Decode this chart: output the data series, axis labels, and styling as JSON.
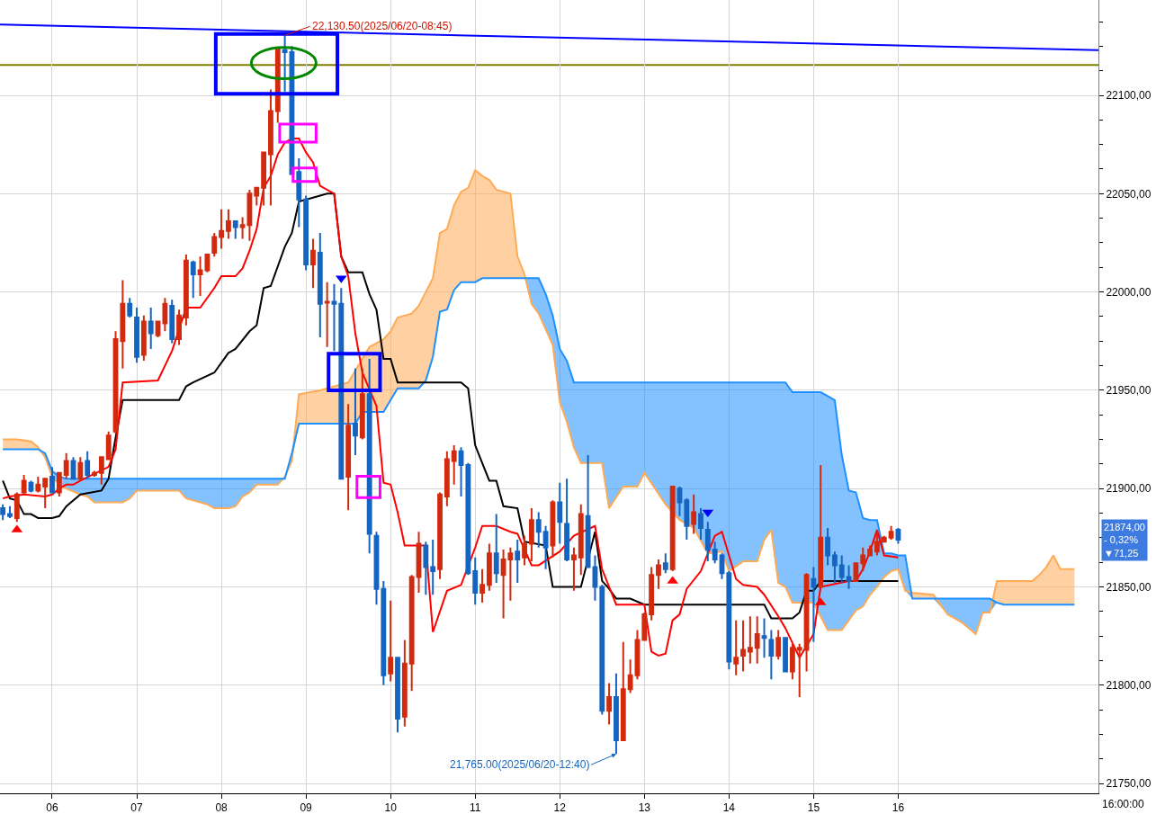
{
  "chart_data": {
    "type": "candlestick",
    "x": [
      "2025-06-20T05:25",
      "2025-06-20T05:30",
      "2025-06-20T05:35",
      "2025-06-20T05:40",
      "2025-06-20T05:45",
      "2025-06-20T05:50",
      "2025-06-20T05:55",
      "2025-06-20T06:00",
      "2025-06-20T06:05",
      "2025-06-20T06:10",
      "2025-06-20T06:15",
      "2025-06-20T06:20",
      "2025-06-20T06:25",
      "2025-06-20T06:30",
      "2025-06-20T06:35",
      "2025-06-20T06:40",
      "2025-06-20T06:45",
      "2025-06-20T06:50",
      "2025-06-20T06:55",
      "2025-06-20T07:00",
      "2025-06-20T07:05",
      "2025-06-20T07:10",
      "2025-06-20T07:15",
      "2025-06-20T07:20",
      "2025-06-20T07:25",
      "2025-06-20T07:30",
      "2025-06-20T07:35",
      "2025-06-20T07:40",
      "2025-06-20T07:45",
      "2025-06-20T07:50",
      "2025-06-20T07:55",
      "2025-06-20T08:00",
      "2025-06-20T08:05",
      "2025-06-20T08:10",
      "2025-06-20T08:15",
      "2025-06-20T08:20",
      "2025-06-20T08:25",
      "2025-06-20T08:30",
      "2025-06-20T08:35",
      "2025-06-20T08:40",
      "2025-06-20T08:45",
      "2025-06-20T08:50",
      "2025-06-20T08:55",
      "2025-06-20T09:00",
      "2025-06-20T09:05",
      "2025-06-20T09:10",
      "2025-06-20T09:15",
      "2025-06-20T09:20",
      "2025-06-20T09:25",
      "2025-06-20T09:30",
      "2025-06-20T09:35",
      "2025-06-20T09:40",
      "2025-06-20T09:45",
      "2025-06-20T09:50",
      "2025-06-20T09:55",
      "2025-06-20T10:00",
      "2025-06-20T10:05",
      "2025-06-20T10:10",
      "2025-06-20T10:15",
      "2025-06-20T10:20",
      "2025-06-20T10:25",
      "2025-06-20T10:30",
      "2025-06-20T10:35",
      "2025-06-20T10:40",
      "2025-06-20T10:45",
      "2025-06-20T10:50",
      "2025-06-20T10:55",
      "2025-06-20T11:00",
      "2025-06-20T11:05",
      "2025-06-20T11:10",
      "2025-06-20T11:15",
      "2025-06-20T11:20",
      "2025-06-20T11:25",
      "2025-06-20T11:30",
      "2025-06-20T11:35",
      "2025-06-20T11:40",
      "2025-06-20T11:45",
      "2025-06-20T11:50",
      "2025-06-20T11:55",
      "2025-06-20T12:00",
      "2025-06-20T12:05",
      "2025-06-20T12:10",
      "2025-06-20T12:15",
      "2025-06-20T12:20",
      "2025-06-20T12:25",
      "2025-06-20T12:30",
      "2025-06-20T12:35",
      "2025-06-20T12:40",
      "2025-06-20T12:45",
      "2025-06-20T12:50",
      "2025-06-20T12:55",
      "2025-06-20T13:00",
      "2025-06-20T13:05",
      "2025-06-20T13:10",
      "2025-06-20T13:15",
      "2025-06-20T13:20",
      "2025-06-20T13:25",
      "2025-06-20T13:30",
      "2025-06-20T13:35",
      "2025-06-20T13:40",
      "2025-06-20T13:45",
      "2025-06-20T13:50",
      "2025-06-20T13:55",
      "2025-06-20T14:00",
      "2025-06-20T14:05",
      "2025-06-20T14:10",
      "2025-06-20T14:15",
      "2025-06-20T14:20",
      "2025-06-20T14:25",
      "2025-06-20T14:30",
      "2025-06-20T14:35",
      "2025-06-20T14:40",
      "2025-06-20T14:45",
      "2025-06-20T14:50",
      "2025-06-20T14:55",
      "2025-06-20T15:00",
      "2025-06-20T15:05",
      "2025-06-20T15:10",
      "2025-06-20T15:15",
      "2025-06-20T15:20",
      "2025-06-20T15:25",
      "2025-06-20T15:30",
      "2025-06-20T15:35",
      "2025-06-20T15:40",
      "2025-06-20T15:45",
      "2025-06-20T15:50",
      "2025-06-20T15:55",
      "2025-06-20T16:00"
    ],
    "ohlc": [
      [
        21890,
        21892,
        21884,
        21887
      ],
      [
        21887,
        21891,
        21885,
        21886
      ],
      [
        21885,
        21898,
        21883,
        21897
      ],
      [
        21898,
        21907,
        21897,
        21904
      ],
      [
        21903,
        21904,
        21898,
        21899
      ],
      [
        21899,
        21906,
        21898,
        21902
      ],
      [
        21901,
        21905,
        21890,
        21905
      ],
      [
        21906,
        21911,
        21898,
        21898
      ],
      [
        21898,
        21908,
        21896,
        21908
      ],
      [
        21907,
        21918,
        21905,
        21914
      ],
      [
        21914,
        21916,
        21905,
        21905
      ],
      [
        21905,
        21916,
        21904,
        21913
      ],
      [
        21914,
        21919,
        21905,
        21907
      ],
      [
        21907,
        21909,
        21906,
        21908
      ],
      [
        21908,
        21916,
        21902,
        21916
      ],
      [
        21915,
        21929,
        21915,
        21927
      ],
      [
        21929,
        21980,
        21928,
        21976
      ],
      [
        21975,
        22006,
        21961,
        21994
      ],
      [
        21994,
        21997,
        21987,
        21988
      ],
      [
        21987,
        21992,
        21964,
        21967
      ],
      [
        21968,
        21988,
        21965,
        21985
      ],
      [
        21985,
        21992,
        21971,
        21979
      ],
      [
        21978,
        21985,
        21977,
        21985
      ],
      [
        21984,
        21997,
        21980,
        21994
      ],
      [
        21993,
        21996,
        21974,
        21976
      ],
      [
        21976,
        21991,
        21973,
        21988
      ],
      [
        21987,
        22019,
        21983,
        22016
      ],
      [
        22015,
        22016,
        21997,
        22009
      ],
      [
        22009,
        22018,
        21998,
        22011
      ],
      [
        22011,
        22019,
        22010,
        22019
      ],
      [
        22020,
        22030,
        22018,
        22028
      ],
      [
        22028,
        22042,
        22022,
        22031
      ],
      [
        22031,
        22042,
        22027,
        22036
      ],
      [
        22036,
        22036,
        22027,
        22033
      ],
      [
        22033,
        22038,
        22027,
        22034
      ],
      [
        22034,
        22052,
        22026,
        22050
      ],
      [
        22049,
        22053,
        22044,
        22053
      ],
      [
        22053,
        22071,
        22044,
        22071
      ],
      [
        22070,
        22103,
        22044,
        22092
      ],
      [
        22092,
        22124,
        22086,
        22124
      ],
      [
        22123,
        22130.5,
        22102,
        22122
      ],
      [
        22122,
        22125,
        22060,
        22060
      ],
      [
        22061,
        22068,
        22033,
        22047
      ],
      [
        22047,
        22049,
        22011,
        22014
      ],
      [
        22014,
        22027,
        22002,
        22021
      ],
      [
        22020,
        22030,
        21977,
        21994
      ],
      [
        21994.5,
        22005,
        21972,
        21995
      ],
      [
        21995,
        22004,
        21970,
        21994
      ],
      [
        21994,
        22002,
        21905,
        21905
      ],
      [
        21906,
        21943,
        21889,
        21932
      ],
      [
        21933,
        21961,
        21917,
        21927
      ],
      [
        21926,
        21961,
        21925,
        21948
      ],
      [
        21948,
        21966,
        21867,
        21877
      ],
      [
        21876,
        21878,
        21841,
        21849
      ],
      [
        21849,
        21853,
        21800,
        21805
      ],
      [
        21806,
        21843,
        21802,
        21814
      ],
      [
        21814,
        21814,
        21776,
        21783
      ],
      [
        21784,
        21823,
        21779,
        21811
      ],
      [
        21811,
        21856,
        21797,
        21855
      ],
      [
        21855,
        21878,
        21847,
        21872
      ],
      [
        21871,
        21873,
        21846,
        21860
      ],
      [
        21860,
        21874,
        21846,
        21858
      ],
      [
        21859,
        21898,
        21854,
        21897
      ],
      [
        21896,
        21919,
        21891,
        21915
      ],
      [
        21914,
        21922,
        21902,
        21919
      ],
      [
        21919,
        21921,
        21896,
        21912
      ],
      [
        21912,
        21913,
        21856,
        21857
      ],
      [
        21858,
        21865,
        21841,
        21847
      ],
      [
        21847,
        21859,
        21842,
        21851
      ],
      [
        21851,
        21872,
        21848,
        21867
      ],
      [
        21867,
        21887,
        21852,
        21857
      ],
      [
        21856,
        21869,
        21834,
        21864
      ],
      [
        21864,
        21870,
        21843,
        21867
      ],
      [
        21868,
        21874,
        21852,
        21864
      ],
      [
        21865,
        21876,
        21861,
        21872
      ],
      [
        21872,
        21890,
        21863,
        21884
      ],
      [
        21884,
        21888,
        21870,
        21878
      ],
      [
        21878,
        21881,
        21859,
        21870
      ],
      [
        21871,
        21894,
        21865,
        21893
      ],
      [
        21893,
        21903,
        21872,
        21883
      ],
      [
        21882,
        21905,
        21863,
        21864
      ],
      [
        21864,
        21870,
        21848,
        21866
      ],
      [
        21865,
        21892,
        21856,
        21887
      ],
      [
        21886,
        21917,
        21860,
        21860
      ],
      [
        21860,
        21866,
        21843,
        21850
      ],
      [
        21850,
        21851,
        21785,
        21787
      ],
      [
        21787,
        21801,
        21780,
        21794
      ],
      [
        21794,
        21806,
        21765,
        21772
      ],
      [
        21772,
        21822,
        21772,
        21798
      ],
      [
        21798,
        21813,
        21796,
        21805
      ],
      [
        21805,
        21828,
        21803,
        21823
      ],
      [
        21823,
        21837,
        21823,
        21836
      ],
      [
        21836,
        21860,
        21833,
        21856
      ],
      [
        21856,
        21864,
        21849,
        21861
      ],
      [
        21862,
        21867,
        21857,
        21859
      ],
      [
        21859,
        21901,
        21858,
        21901
      ],
      [
        21900,
        21901,
        21886,
        21893
      ],
      [
        21894,
        21895,
        21874,
        21881
      ],
      [
        21882,
        21897,
        21877,
        21888
      ],
      [
        21887,
        21890,
        21874,
        21880
      ],
      [
        21879,
        21883,
        21863,
        21869
      ],
      [
        21869,
        21873,
        21862,
        21864
      ],
      [
        21866,
        21867,
        21854,
        21857
      ],
      [
        21857,
        21858,
        21808,
        21812
      ],
      [
        21811,
        21833,
        21805,
        21814
      ],
      [
        21815,
        21833,
        21807,
        21818
      ],
      [
        21817,
        21835,
        21811,
        21819
      ],
      [
        21819,
        21835,
        21811,
        21826
      ],
      [
        21825,
        21834,
        21814,
        21824
      ],
      [
        21823,
        21828,
        21803,
        21815
      ],
      [
        21815,
        21828,
        21813,
        21824
      ],
      [
        21824,
        21824,
        21807,
        21807
      ],
      [
        21807,
        21821,
        21803,
        21819
      ],
      [
        21818,
        21821,
        21794,
        21819
      ],
      [
        21818,
        21857,
        21807,
        21856
      ],
      [
        21854,
        21860,
        21822,
        21850
      ],
      [
        21850,
        21912,
        21850,
        21875
      ],
      [
        21875,
        21880,
        21861,
        21866
      ],
      [
        21866,
        21868,
        21852,
        21861
      ],
      [
        21861,
        21866,
        21852,
        21855
      ],
      [
        21855,
        21861,
        21849,
        21853
      ],
      [
        21853,
        21862,
        21853,
        21862
      ],
      [
        21862,
        21870,
        21858,
        21866
      ],
      [
        21866,
        21871,
        21866,
        21869
      ],
      [
        21868,
        21879,
        21866,
        21873
      ],
      [
        21873,
        21876,
        21873,
        21875
      ],
      [
        21875,
        21881,
        21874,
        21878
      ],
      [
        21879,
        21880,
        21872,
        21874
      ]
    ],
    "colors": [
      "#1565c0",
      "#1565c0",
      "#d12a0f",
      "#d12a0f",
      "#1565c0",
      "#d12a0f",
      "#d12a0f",
      "#1565c0",
      "#d12a0f",
      "#d12a0f",
      "#1565c0",
      "#d12a0f",
      "#1565c0",
      "#d12a0f",
      "#d12a0f",
      "#d12a0f",
      "#d12a0f",
      "#d12a0f",
      "#1565c0",
      "#1565c0",
      "#d12a0f",
      "#1565c0",
      "#d12a0f",
      "#d12a0f",
      "#1565c0",
      "#d12a0f",
      "#d12a0f",
      "#1565c0",
      "#d12a0f",
      "#d12a0f",
      "#d12a0f",
      "#d12a0f",
      "#d12a0f",
      "#1565c0",
      "#d12a0f",
      "#d12a0f",
      "#d12a0f",
      "#d12a0f",
      "#d12a0f",
      "#d12a0f",
      "#1565c0",
      "#1565c0",
      "#1565c0",
      "#1565c0",
      "#d12a0f",
      "#1565c0",
      "#d12a0f",
      "#1565c0",
      "#1565c0",
      "#d12a0f",
      "#1565c0",
      "#d12a0f",
      "#1565c0",
      "#1565c0",
      "#1565c0",
      "#d12a0f",
      "#1565c0",
      "#d12a0f",
      "#d12a0f",
      "#d12a0f",
      "#1565c0",
      "#1565c0",
      "#d12a0f",
      "#d12a0f",
      "#d12a0f",
      "#1565c0",
      "#1565c0",
      "#1565c0",
      "#d12a0f",
      "#d12a0f",
      "#1565c0",
      "#d12a0f",
      "#d12a0f",
      "#1565c0",
      "#d12a0f",
      "#d12a0f",
      "#1565c0",
      "#1565c0",
      "#d12a0f",
      "#1565c0",
      "#1565c0",
      "#d12a0f",
      "#d12a0f",
      "#1565c0",
      "#1565c0",
      "#1565c0",
      "#d12a0f",
      "#1565c0",
      "#d12a0f",
      "#d12a0f",
      "#d12a0f",
      "#d12a0f",
      "#d12a0f",
      "#d12a0f",
      "#1565c0",
      "#d12a0f",
      "#1565c0",
      "#1565c0",
      "#d12a0f",
      "#1565c0",
      "#1565c0",
      "#1565c0",
      "#1565c0",
      "#1565c0",
      "#d12a0f",
      "#d12a0f",
      "#d12a0f",
      "#d12a0f",
      "#1565c0",
      "#1565c0",
      "#d12a0f",
      "#1565c0",
      "#d12a0f",
      "#d12a0f",
      "#d12a0f",
      "#1565c0",
      "#d12a0f",
      "#1565c0",
      "#1565c0",
      "#1565c0",
      "#1565c0",
      "#d12a0f",
      "#d12a0f",
      "#d12a0f",
      "#d12a0f",
      "#d12a0f",
      "#d12a0f",
      "#1565c0"
    ],
    "series": [
      {
        "type": "area",
        "color": "#ffaa55",
        "x": [
          "2025-06-20T05:25",
          "2025-06-20T05:35",
          "2025-06-20T05:45",
          "2025-06-20T05:50",
          "2025-06-20T05:55",
          "2025-06-20T06:00",
          "2025-06-20T06:05",
          "2025-06-20T06:10",
          "2025-06-20T06:20",
          "2025-06-20T06:25",
          "2025-06-20T06:30",
          "2025-06-20T06:50",
          "2025-06-20T06:55",
          "2025-06-20T07:00",
          "2025-06-20T07:30",
          "2025-06-20T07:35",
          "2025-06-20T07:40",
          "2025-06-20T07:50",
          "2025-06-20T07:55",
          "2025-06-20T08:05",
          "2025-06-20T08:10",
          "2025-06-20T08:15",
          "2025-06-20T08:20",
          "2025-06-20T08:25",
          "2025-06-20T08:40",
          "2025-06-20T08:45",
          "2025-06-20T08:50",
          "2025-06-20T08:55",
          "2025-06-20T09:10",
          "2025-06-20T09:30",
          "2025-06-20T09:35",
          "2025-06-20T09:40",
          "2025-06-20T09:45",
          "2025-06-20T09:55",
          "2025-06-20T10:00",
          "2025-06-20T10:05",
          "2025-06-20T10:15",
          "2025-06-20T10:20",
          "2025-06-20T10:25",
          "2025-06-20T10:30",
          "2025-06-20T10:35",
          "2025-06-20T10:40",
          "2025-06-20T10:45",
          "2025-06-20T10:50",
          "2025-06-20T10:55",
          "2025-06-20T11:00",
          "2025-06-20T11:05",
          "2025-06-20T11:10",
          "2025-06-20T11:15",
          "2025-06-20T11:25",
          "2025-06-20T11:30",
          "2025-06-20T11:35",
          "2025-06-20T11:40",
          "2025-06-20T11:45",
          "2025-06-20T11:50",
          "2025-06-20T11:55",
          "2025-06-20T12:00",
          "2025-06-20T12:05",
          "2025-06-20T12:10",
          "2025-06-20T12:15",
          "2025-06-20T12:30",
          "2025-06-20T12:35",
          "2025-06-20T12:45",
          "2025-06-20T12:55",
          "2025-06-20T13:00",
          "2025-06-20T13:15",
          "2025-06-20T13:25",
          "2025-06-20T13:35",
          "2025-06-20T13:45",
          "2025-06-20T13:55",
          "2025-06-20T14:00",
          "2025-06-20T14:10",
          "2025-06-20T14:20",
          "2025-06-20T14:25",
          "2025-06-20T14:30",
          "2025-06-20T14:35",
          "2025-06-20T14:40",
          "2025-06-20T14:45",
          "2025-06-20T15:00",
          "2025-06-20T15:05",
          "2025-06-20T15:10",
          "2025-06-20T15:15",
          "2025-06-20T15:20",
          "2025-06-20T15:25",
          "2025-06-20T15:30",
          "2025-06-20T15:35",
          "2025-06-20T15:40",
          "2025-06-20T15:45",
          "2025-06-20T15:50",
          "2025-06-20T15:55",
          "2025-06-20T16:00",
          "2025-06-20T16:05",
          "2025-06-20T16:10",
          "2025-06-20T16:25",
          "2025-06-20T16:35",
          "2025-06-20T16:45",
          "2025-06-20T16:55",
          "2025-06-20T17:00",
          "2025-06-20T17:05",
          "2025-06-20T17:10",
          "2025-06-20T17:15",
          "2025-06-20T17:35",
          "2025-06-20T17:40",
          "2025-06-20T17:45",
          "2025-06-20T17:50",
          "2025-06-20T17:55",
          "2025-06-20T18:05"
        ],
        "values": [
          21925,
          21925,
          21924,
          21921,
          21916,
          21906,
          21902,
          21900,
          21897,
          21896,
          21893,
          21893,
          21895,
          21899,
          21899,
          21895,
          21894,
          21892,
          21890,
          21890,
          21891,
          21896,
          21898,
          21902,
          21902,
          21906,
          21914,
          21948,
          21950,
          21954,
          21960,
          21966,
          21972,
          21976,
          21980,
          21987,
          21989,
          21993,
          22000,
          22007,
          22030,
          22032,
          22044,
          22051,
          22053,
          22062,
          22059,
          22057,
          22052,
          22050,
          22018,
          22009,
          21994,
          21989,
          21981,
          21973,
          21944,
          21934,
          21921,
          21913,
          21913,
          21890,
          21901,
          21901,
          21908,
          21892,
          21884,
          21880,
          21867,
          21868,
          21858,
          21863,
          21863,
          21874,
          21879,
          21852,
          21850,
          21842,
          21842,
          21835,
          21828,
          21828,
          21828,
          21833,
          21838,
          21840,
          21846,
          21850,
          21855,
          21858,
          21859,
          21848,
          21847,
          21846,
          21836,
          21832,
          21826,
          21837,
          21837,
          21853,
          21853,
          21853,
          21856,
          21860,
          21866,
          21859,
          21859
        ]
      },
      {
        "type": "area",
        "color": "#1e90ff",
        "x": [
          "2025-06-20T05:25",
          "2025-06-20T05:35",
          "2025-06-20T05:45",
          "2025-06-20T05:50",
          "2025-06-20T05:55",
          "2025-06-20T06:00",
          "2025-06-20T06:05",
          "2025-06-20T06:10",
          "2025-06-20T06:20",
          "2025-06-20T06:25",
          "2025-06-20T06:30",
          "2025-06-20T06:50",
          "2025-06-20T06:55",
          "2025-06-20T07:00",
          "2025-06-20T07:30",
          "2025-06-20T07:35",
          "2025-06-20T07:40",
          "2025-06-20T07:50",
          "2025-06-20T07:55",
          "2025-06-20T08:05",
          "2025-06-20T08:10",
          "2025-06-20T08:15",
          "2025-06-20T08:20",
          "2025-06-20T08:25",
          "2025-06-20T08:40",
          "2025-06-20T08:45",
          "2025-06-20T08:50",
          "2025-06-20T08:55",
          "2025-06-20T09:10",
          "2025-06-20T09:30",
          "2025-06-20T09:35",
          "2025-06-20T09:40",
          "2025-06-20T09:45",
          "2025-06-20T09:55",
          "2025-06-20T10:00",
          "2025-06-20T10:05",
          "2025-06-20T10:15",
          "2025-06-20T10:20",
          "2025-06-20T10:25",
          "2025-06-20T10:30",
          "2025-06-20T10:35",
          "2025-06-20T10:40",
          "2025-06-20T10:45",
          "2025-06-20T10:50",
          "2025-06-20T10:55",
          "2025-06-20T11:00",
          "2025-06-20T11:05",
          "2025-06-20T11:10",
          "2025-06-20T11:15",
          "2025-06-20T11:25",
          "2025-06-20T11:30",
          "2025-06-20T11:35",
          "2025-06-20T11:40",
          "2025-06-20T11:45",
          "2025-06-20T11:50",
          "2025-06-20T11:55",
          "2025-06-20T12:00",
          "2025-06-20T12:05",
          "2025-06-20T12:10",
          "2025-06-20T12:15",
          "2025-06-20T12:30",
          "2025-06-20T12:35",
          "2025-06-20T12:45",
          "2025-06-20T12:55",
          "2025-06-20T13:00",
          "2025-06-20T13:15",
          "2025-06-20T13:25",
          "2025-06-20T13:35",
          "2025-06-20T13:45",
          "2025-06-20T13:55",
          "2025-06-20T14:00",
          "2025-06-20T14:10",
          "2025-06-20T14:20",
          "2025-06-20T14:25",
          "2025-06-20T14:30",
          "2025-06-20T14:35",
          "2025-06-20T14:40",
          "2025-06-20T14:45",
          "2025-06-20T15:00",
          "2025-06-20T15:05",
          "2025-06-20T15:10",
          "2025-06-20T15:15",
          "2025-06-20T15:20",
          "2025-06-20T15:25",
          "2025-06-20T15:30",
          "2025-06-20T15:35",
          "2025-06-20T15:40",
          "2025-06-20T15:45",
          "2025-06-20T15:50",
          "2025-06-20T15:55",
          "2025-06-20T16:00",
          "2025-06-20T16:05",
          "2025-06-20T16:10",
          "2025-06-20T16:25",
          "2025-06-20T16:35",
          "2025-06-20T16:45",
          "2025-06-20T16:55",
          "2025-06-20T17:00",
          "2025-06-20T17:05",
          "2025-06-20T17:10",
          "2025-06-20T17:15",
          "2025-06-20T17:35",
          "2025-06-20T17:40",
          "2025-06-20T17:45",
          "2025-06-20T17:50",
          "2025-06-20T17:55",
          "2025-06-20T18:05"
        ],
        "values": [
          21920,
          21920,
          21920,
          21920,
          21918,
          21909,
          21906,
          21905,
          21905,
          21905,
          21905,
          21905,
          21905,
          21905,
          21905,
          21905,
          21905,
          21905,
          21905,
          21905,
          21905,
          21905,
          21905,
          21905,
          21905,
          21905,
          21918,
          21933,
          21933,
          21933,
          21933,
          21939,
          21939,
          21939,
          21945,
          21951,
          21951,
          21951,
          21955,
          21967,
          21990,
          21991,
          22001,
          22005,
          22005,
          22005,
          22007,
          22007,
          22007,
          22007,
          22007,
          22007,
          22007,
          22007,
          21999,
          21988,
          21971,
          21965,
          21954,
          21954,
          21954,
          21954,
          21954,
          21954,
          21954,
          21954,
          21954,
          21954,
          21954,
          21954,
          21954,
          21954,
          21954,
          21954,
          21954,
          21954,
          21954,
          21949,
          21949,
          21949,
          21947,
          21945,
          21917,
          21899,
          21898,
          21885,
          21884,
          21884,
          21867,
          21867,
          21866,
          21866,
          21844,
          21844,
          21844,
          21844,
          21844,
          21844,
          21844,
          21842,
          21841,
          21841,
          21841,
          21841,
          21841,
          21841,
          21841
        ]
      },
      {
        "type": "line",
        "color": "#000000",
        "x": [
          "2025-06-20T05:25",
          "2025-06-20T05:30",
          "2025-06-20T05:35",
          "2025-06-20T05:40",
          "2025-06-20T05:45",
          "2025-06-20T05:50",
          "2025-06-20T06:00",
          "2025-06-20T06:05",
          "2025-06-20T06:10",
          "2025-06-20T06:20",
          "2025-06-20T06:35",
          "2025-06-20T06:40",
          "2025-06-20T06:45",
          "2025-06-20T06:50",
          "2025-06-20T07:30",
          "2025-06-20T07:35",
          "2025-06-20T07:40",
          "2025-06-20T07:55",
          "2025-06-20T08:05",
          "2025-06-20T08:10",
          "2025-06-20T08:20",
          "2025-06-20T08:25",
          "2025-06-20T08:30",
          "2025-06-20T08:35",
          "2025-06-20T08:45",
          "2025-06-20T08:50",
          "2025-06-20T08:55",
          "2025-06-20T09:05",
          "2025-06-20T09:15",
          "2025-06-20T09:20",
          "2025-06-20T09:25",
          "2025-06-20T09:30",
          "2025-06-20T09:40",
          "2025-06-20T09:45",
          "2025-06-20T09:50",
          "2025-06-20T09:55",
          "2025-06-20T10:00",
          "2025-06-20T10:05",
          "2025-06-20T10:50",
          "2025-06-20T10:55",
          "2025-06-20T11:00",
          "2025-06-20T11:10",
          "2025-06-20T11:15",
          "2025-06-20T11:20",
          "2025-06-20T11:30",
          "2025-06-20T11:35",
          "2025-06-20T11:50",
          "2025-06-20T11:55",
          "2025-06-20T12:15",
          "2025-06-20T12:25",
          "2025-06-20T12:30",
          "2025-06-20T12:35",
          "2025-06-20T12:40",
          "2025-06-20T12:50",
          "2025-06-20T13:00",
          "2025-06-20T14:25",
          "2025-06-20T14:30",
          "2025-06-20T14:45",
          "2025-06-20T14:50",
          "2025-06-20T14:55",
          "2025-06-20T15:00",
          "2025-06-20T15:05",
          "2025-06-20T16:00"
        ],
        "values": [
          21904,
          21895,
          21894,
          21887,
          21887,
          21885,
          21885,
          21886,
          21891,
          21897,
          21899,
          21905,
          21926,
          21945,
          21945,
          21952,
          21954,
          21959,
          21969,
          21971,
          21980,
          21983,
          22002,
          22003,
          22023,
          22030,
          22046,
          22048,
          22050,
          22050,
          22018,
          22010,
          22010,
          21999,
          21991,
          21966,
          21966,
          21954,
          21954,
          21951,
          21922,
          21904,
          21904,
          21891,
          21890,
          21873,
          21871,
          21850,
          21850,
          21878,
          21853,
          21849,
          21844,
          21844,
          21841,
          21841,
          21834,
          21834,
          21837,
          21848,
          21848,
          21853,
          21853
        ]
      },
      {
        "type": "line",
        "color": "#ff0000",
        "x": [
          "2025-06-20T05:25",
          "2025-06-20T05:30",
          "2025-06-20T05:40",
          "2025-06-20T05:55",
          "2025-06-20T06:00",
          "2025-06-20T06:05",
          "2025-06-20T06:10",
          "2025-06-20T06:15",
          "2025-06-20T06:20",
          "2025-06-20T06:40",
          "2025-06-20T06:45",
          "2025-06-20T06:50",
          "2025-06-20T07:15",
          "2025-06-20T07:25",
          "2025-06-20T07:35",
          "2025-06-20T07:45",
          "2025-06-20T07:55",
          "2025-06-20T08:00",
          "2025-06-20T08:10",
          "2025-06-20T08:15",
          "2025-06-20T08:20",
          "2025-06-20T08:25",
          "2025-06-20T08:30",
          "2025-06-20T08:35",
          "2025-06-20T08:40",
          "2025-06-20T08:45",
          "2025-06-20T08:50",
          "2025-06-20T08:55",
          "2025-06-20T09:00",
          "2025-06-20T09:05",
          "2025-06-20T09:10",
          "2025-06-20T09:20",
          "2025-06-20T09:25",
          "2025-06-20T09:30",
          "2025-06-20T09:35",
          "2025-06-20T09:40",
          "2025-06-20T09:50",
          "2025-06-20T09:55",
          "2025-06-20T10:00",
          "2025-06-20T10:05",
          "2025-06-20T10:10",
          "2025-06-20T10:25",
          "2025-06-20T10:30",
          "2025-06-20T10:40",
          "2025-06-20T10:50",
          "2025-06-20T11:00",
          "2025-06-20T11:05",
          "2025-06-20T11:15",
          "2025-06-20T11:25",
          "2025-06-20T11:30",
          "2025-06-20T11:40",
          "2025-06-20T11:45",
          "2025-06-20T12:00",
          "2025-06-20T12:10",
          "2025-06-20T12:25",
          "2025-06-20T12:30",
          "2025-06-20T12:40",
          "2025-06-20T13:00",
          "2025-06-20T13:05",
          "2025-06-20T13:10",
          "2025-06-20T13:15",
          "2025-06-20T13:20",
          "2025-06-20T13:25",
          "2025-06-20T13:30",
          "2025-06-20T13:40",
          "2025-06-20T13:45",
          "2025-06-20T13:50",
          "2025-06-20T13:55",
          "2025-06-20T14:05",
          "2025-06-20T14:10",
          "2025-06-20T14:20",
          "2025-06-20T14:25",
          "2025-06-20T14:35",
          "2025-06-20T14:40",
          "2025-06-20T14:50",
          "2025-06-20T15:00",
          "2025-06-20T15:05",
          "2025-06-20T15:25",
          "2025-06-20T15:30",
          "2025-06-20T15:35",
          "2025-06-20T15:40",
          "2025-06-20T15:45",
          "2025-06-20T15:50",
          "2025-06-20T16:00"
        ],
        "values": [
          21895,
          21896,
          21897,
          21896,
          21897,
          21900,
          21902,
          21902,
          21904,
          21911,
          21920,
          21954,
          21955,
          21970,
          21992,
          21992,
          22002,
          22008,
          22008,
          22012,
          22021,
          22032,
          22053,
          22059,
          22070,
          22076,
          22078,
          22078,
          22071,
          22066,
          22054,
          22050,
          22018,
          22008,
          21979,
          21959,
          21942,
          21903,
          21902,
          21888,
          21871,
          21871,
          21827,
          21848,
          21851,
          21870,
          21881,
          21881,
          21878,
          21877,
          21861,
          21861,
          21868,
          21876,
          21881,
          21859,
          21841,
          21841,
          21817,
          21815,
          21816,
          21833,
          21836,
          21849,
          21858,
          21867,
          21876,
          21878,
          21854,
          21851,
          21850,
          21846,
          21835,
          21829,
          21814,
          21826,
          21850,
          21853,
          21853,
          21859,
          21868,
          21879,
          21866,
          21865
        ]
      },
      {
        "type": "line",
        "color": "#0000ff",
        "x": [
          "2025-06-20T05:23",
          "2025-06-20T18:22"
        ],
        "values": [
          22136,
          22123
        ]
      },
      {
        "type": "scatter",
        "color": "#ff0000",
        "marker": "triangle",
        "x": [
          "2025-06-20T05:35",
          "2025-06-20T13:20",
          "2025-06-20T15:05"
        ],
        "values": [
          21879,
          21853,
          21842
        ]
      },
      {
        "type": "scatter",
        "color": "#0000ff",
        "marker": "triangle-down",
        "x": [
          "2025-06-20T09:25",
          "2025-06-20T13:45"
        ],
        "values": [
          22007,
          21888
        ]
      }
    ],
    "ref_lines": [
      {
        "axis": "y",
        "value": 22115.5,
        "color": "#808000"
      }
    ],
    "xlim": [
      "2025-06-20T05:23",
      "2025-06-20T18:22"
    ],
    "xticks": [
      {
        "value": "2025-06-20T06:00",
        "label": "06"
      },
      {
        "value": "2025-06-20T07:00",
        "label": "07"
      },
      {
        "value": "2025-06-20T08:00",
        "label": "08"
      },
      {
        "value": "2025-06-20T09:00",
        "label": "09"
      },
      {
        "value": "2025-06-20T10:00",
        "label": "10"
      },
      {
        "value": "2025-06-20T11:00",
        "label": "11"
      },
      {
        "value": "2025-06-20T12:00",
        "label": "12"
      },
      {
        "value": "2025-06-20T13:00",
        "label": "13"
      },
      {
        "value": "2025-06-20T14:00",
        "label": "14"
      },
      {
        "value": "2025-06-20T15:00",
        "label": "15"
      },
      {
        "value": "2025-06-20T16:00",
        "label": "16"
      }
    ],
    "ylim": [
      21745,
      22148.5
    ],
    "yticks": [
      {
        "value": 21750,
        "label": "21750,00"
      },
      {
        "value": 21762.5,
        "label": null
      },
      {
        "value": 21775,
        "label": null
      },
      {
        "value": 21787.5,
        "label": null
      },
      {
        "value": 21800,
        "label": "21800,00"
      },
      {
        "value": 21812.5,
        "label": null
      },
      {
        "value": 21825,
        "label": null
      },
      {
        "value": 21837.5,
        "label": null
      },
      {
        "value": 21850,
        "label": "21850,00"
      },
      {
        "value": 21862.5,
        "label": null
      },
      {
        "value": 21875,
        "label": null
      },
      {
        "value": 21887.5,
        "label": null
      },
      {
        "value": 21900,
        "label": "21900,00"
      },
      {
        "value": 21912.5,
        "label": null
      },
      {
        "value": 21925,
        "label": null
      },
      {
        "value": 21937.5,
        "label": null
      },
      {
        "value": 21950,
        "label": "21950,00"
      },
      {
        "value": 21962.5,
        "label": null
      },
      {
        "value": 21975,
        "label": null
      },
      {
        "value": 21987.5,
        "label": null
      },
      {
        "value": 22000,
        "label": "22000,00"
      },
      {
        "value": 22012.5,
        "label": null
      },
      {
        "value": 22025,
        "label": null
      },
      {
        "value": 22037.5,
        "label": null
      },
      {
        "value": 22050,
        "label": "22050,00"
      },
      {
        "value": 22062.5,
        "label": null
      },
      {
        "value": 22075,
        "label": null
      },
      {
        "value": 22087.5,
        "label": null
      },
      {
        "value": 22100,
        "label": "22100,00"
      },
      {
        "value": 22112.5,
        "label": null
      },
      {
        "value": 22125,
        "label": null
      },
      {
        "value": 22137.5,
        "label": null
      }
    ],
    "grid": true,
    "annotations": [
      {
        "text": "22,130.50(2025/06/20-08:45)",
        "x": "2025-06-20T08:45",
        "y": 22130.5
      },
      {
        "text": "21,765.00(2025/06/20-12:40)",
        "x": "2025-06-20T12:40",
        "y": 21765
      },
      "21874,00\n- 0,32%\n▼71,25"
    ],
    "xlabel": "16:00:00"
  }
}
